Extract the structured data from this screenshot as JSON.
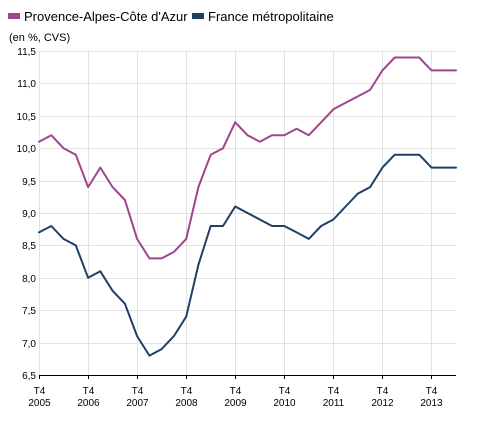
{
  "chart_data": {
    "type": "line",
    "ylabel": "(en %, CVS)",
    "ylim": [
      6.5,
      11.5
    ],
    "yticks": [
      "6,5",
      "7,0",
      "7,5",
      "8,0",
      "8,5",
      "9,0",
      "9,5",
      "10,0",
      "10,5",
      "11,0",
      "11,5"
    ],
    "grid": true,
    "legend_position": "top-left",
    "x": [
      "2005-Q4",
      "2006-Q1",
      "2006-Q2",
      "2006-Q3",
      "2006-Q4",
      "2007-Q1",
      "2007-Q2",
      "2007-Q3",
      "2007-Q4",
      "2008-Q1",
      "2008-Q2",
      "2008-Q3",
      "2008-Q4",
      "2009-Q1",
      "2009-Q2",
      "2009-Q3",
      "2009-Q4",
      "2010-Q1",
      "2010-Q2",
      "2010-Q3",
      "2010-Q4",
      "2011-Q1",
      "2011-Q2",
      "2011-Q3",
      "2011-Q4",
      "2012-Q1",
      "2012-Q2",
      "2012-Q3",
      "2012-Q4",
      "2013-Q1",
      "2013-Q2",
      "2013-Q3",
      "2013-Q4",
      "2014-Q1",
      "2014-Q2"
    ],
    "xticks": [
      {
        "line1": "T4",
        "line2": "2005"
      },
      {
        "line1": "T4",
        "line2": "2006"
      },
      {
        "line1": "T4",
        "line2": "2007"
      },
      {
        "line1": "T4",
        "line2": "2008"
      },
      {
        "line1": "T4",
        "line2": "2009"
      },
      {
        "line1": "T4",
        "line2": "2010"
      },
      {
        "line1": "T4",
        "line2": "2011"
      },
      {
        "line1": "T4",
        "line2": "2012"
      },
      {
        "line1": "T4",
        "line2": "2013"
      }
    ],
    "series": [
      {
        "name": "Provence-Alpes-Côte d'Azur",
        "color": "#a0448c",
        "values": [
          10.1,
          10.2,
          10.0,
          9.9,
          9.4,
          9.7,
          9.4,
          9.2,
          8.6,
          8.3,
          8.3,
          8.4,
          8.6,
          9.4,
          9.9,
          10.0,
          10.4,
          10.2,
          10.1,
          10.2,
          10.2,
          10.3,
          10.2,
          10.4,
          10.6,
          10.7,
          10.8,
          10.9,
          11.2,
          11.4,
          11.4,
          11.4,
          11.2,
          11.2,
          11.2
        ]
      },
      {
        "name": "France métropolitaine",
        "color": "#1f3f66",
        "values": [
          8.7,
          8.8,
          8.6,
          8.5,
          8.0,
          8.1,
          7.8,
          7.6,
          7.1,
          6.8,
          6.9,
          7.1,
          7.4,
          8.2,
          8.8,
          8.8,
          9.1,
          9.0,
          8.9,
          8.8,
          8.8,
          8.7,
          8.6,
          8.8,
          8.9,
          9.1,
          9.3,
          9.4,
          9.7,
          9.9,
          9.9,
          9.9,
          9.7,
          9.7,
          9.7
        ]
      }
    ]
  }
}
